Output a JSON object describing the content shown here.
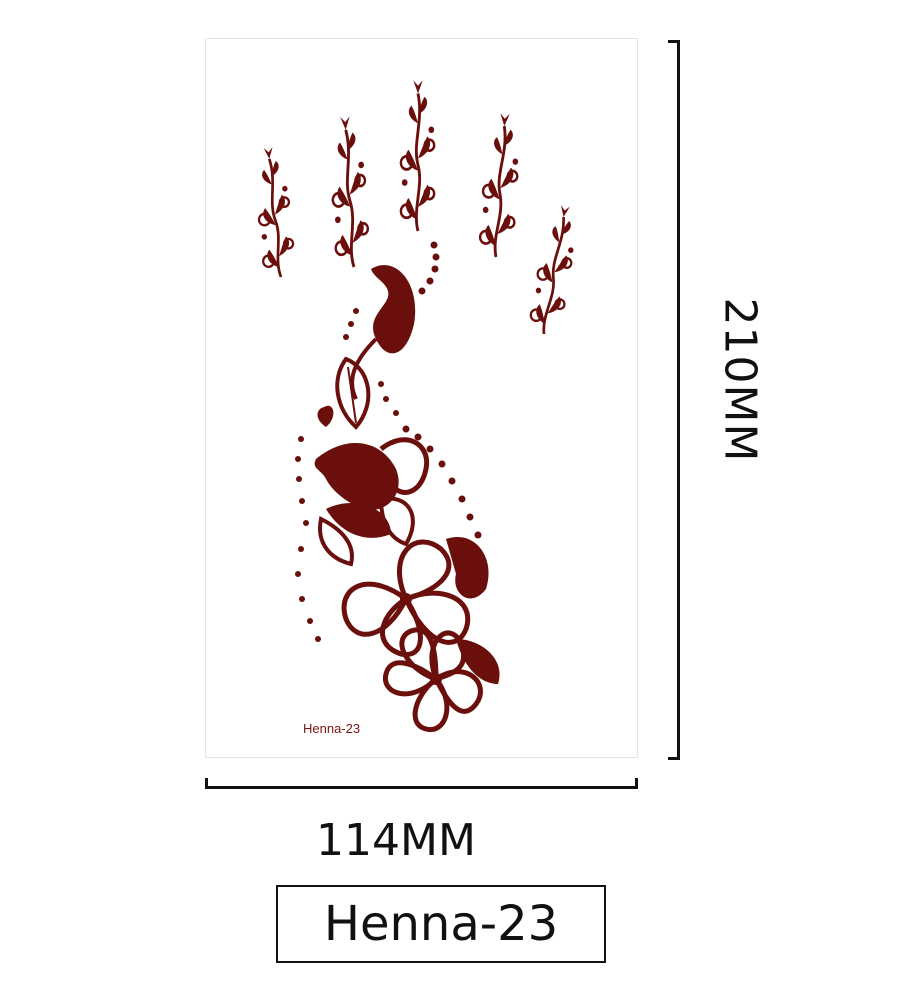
{
  "product": {
    "sheet_label": "Henna-23",
    "name": "Henna-23"
  },
  "dimensions": {
    "width": "114MM",
    "height": "210MM"
  },
  "colors": {
    "henna": "#6b0f0c",
    "ink": "#111111"
  },
  "icons": [
    "henna-hand-design-icon"
  ]
}
